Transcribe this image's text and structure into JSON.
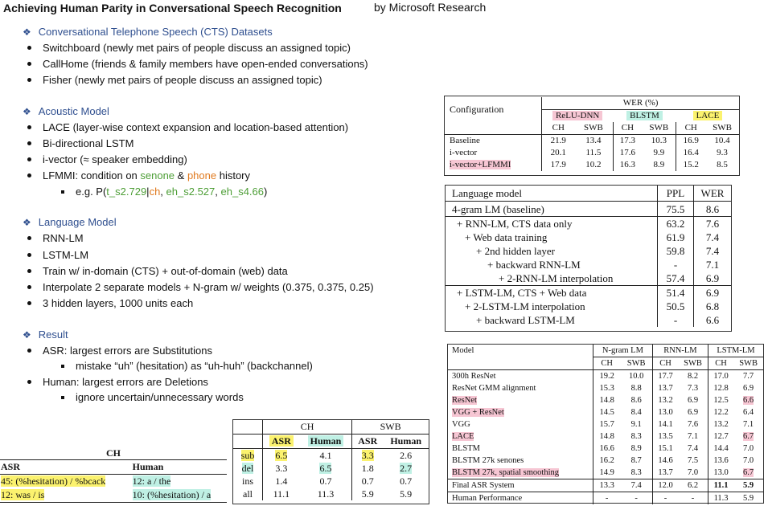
{
  "header": {
    "title": "Achieving Human Parity in Conversational Speech Recognition",
    "byline": "by Microsoft Research"
  },
  "sections": {
    "cts": {
      "heading": "Conversational Telephone Speech (CTS) Datasets",
      "items": [
        "Switchboard (newly met pairs of people discuss an assigned topic)",
        "CallHome (friends & family members have open-ended conversations)",
        "Fisher (newly met pairs of people discuss an assigned topic)"
      ]
    },
    "acoustic": {
      "heading": "Acoustic Model",
      "items": [
        "LACE (layer-wise context expansion and location-based attention)",
        "Bi-directional LSTM",
        "i-vector (≈ speaker embedding)"
      ],
      "lfmmi": {
        "pre": "LFMMI: condition on ",
        "senone": "senone",
        "amp": " & ",
        "phone": "phone",
        "post": " history"
      },
      "example": {
        "pre": "e.g. P(",
        "t": "t_s2.729",
        "bar": "|",
        "ch": "ch",
        "comma1": ", ",
        "eh1": "eh_s2.527",
        "comma2": ", ",
        "eh2": "eh_s4.66",
        "post": ")"
      }
    },
    "language": {
      "heading": "Language Model",
      "items": [
        "RNN-LM",
        "LSTM-LM",
        "Train w/ in-domain (CTS) + out-of-domain (web) data",
        "Interpolate 2 separate models + N-gram w/ weights (0.375, 0.375, 0.25)",
        "3 hidden layers, 1000 units each"
      ]
    },
    "result": {
      "heading": "Result",
      "asr": "ASR: largest errors are Substitutions",
      "asr_sub": "mistake “uh” (hesitation) as “uh-huh” (backchannel)",
      "human": "Human: largest errors are Deletions",
      "human_sub": "ignore uncertain/unnecessary words"
    }
  },
  "wer_table": {
    "config_header": "Configuration",
    "wer_header": "WER (%)",
    "groups": [
      "ReLU-DNN",
      "BLSTM",
      "LACE"
    ],
    "sub": [
      "CH",
      "SWB",
      "CH",
      "SWB",
      "CH",
      "SWB"
    ],
    "rows": [
      {
        "name": "Baseline",
        "v": [
          "21.9",
          "13.4",
          "17.3",
          "10.3",
          "16.9",
          "10.4"
        ]
      },
      {
        "name": "i-vector",
        "v": [
          "20.1",
          "11.5",
          "17.6",
          "9.9",
          "16.4",
          "9.3"
        ]
      },
      {
        "name": "i-vector+LFMMI",
        "v": [
          "17.9",
          "10.2",
          "16.3",
          "8.9",
          "15.2",
          "8.5"
        ]
      }
    ]
  },
  "lm_table": {
    "headers": [
      "Language model",
      "PPL",
      "WER"
    ],
    "rows": [
      {
        "name": "4-gram LM (baseline)",
        "ppl": "75.5",
        "wer": "8.6"
      },
      {
        "name": "+ RNN-LM, CTS data only",
        "ppl": "63.2",
        "wer": "7.6"
      },
      {
        "name": "+ Web data training",
        "ppl": "61.9",
        "wer": "7.4"
      },
      {
        "name": "+ 2nd hidden layer",
        "ppl": "59.8",
        "wer": "7.4"
      },
      {
        "name": "+ backward RNN-LM",
        "ppl": "-",
        "wer": "7.1"
      },
      {
        "name": "+ 2-RNN-LM interpolation",
        "ppl": "57.4",
        "wer": "6.9"
      },
      {
        "name": "+ LSTM-LM, CTS + Web data",
        "ppl": "51.4",
        "wer": "6.9"
      },
      {
        "name": "+ 2-LSTM-LM interpolation",
        "ppl": "50.5",
        "wer": "6.8"
      },
      {
        "name": "+ backward LSTM-LM",
        "ppl": "-",
        "wer": "6.6"
      }
    ]
  },
  "model_table": {
    "headers": [
      "Model",
      "N-gram LM",
      "RNN-LM",
      "LSTM-LM"
    ],
    "sub": [
      "CH",
      "SWB",
      "CH",
      "SWB",
      "CH",
      "SWB"
    ],
    "rows": [
      {
        "name": "300h ResNet",
        "v": [
          "19.2",
          "10.0",
          "17.7",
          "8.2",
          "17.0",
          "7.7"
        ]
      },
      {
        "name": "ResNet GMM alignment",
        "v": [
          "15.3",
          "8.8",
          "13.7",
          "7.3",
          "12.8",
          "6.9"
        ]
      },
      {
        "name": "ResNet",
        "v": [
          "14.8",
          "8.6",
          "13.2",
          "6.9",
          "12.5",
          "6.6"
        ]
      },
      {
        "name": "VGG + ResNet",
        "v": [
          "14.5",
          "8.4",
          "13.0",
          "6.9",
          "12.2",
          "6.4"
        ]
      },
      {
        "name": "VGG",
        "v": [
          "15.7",
          "9.1",
          "14.1",
          "7.6",
          "13.2",
          "7.1"
        ]
      },
      {
        "name": "LACE",
        "v": [
          "14.8",
          "8.3",
          "13.5",
          "7.1",
          "12.7",
          "6.7"
        ]
      },
      {
        "name": "BLSTM",
        "v": [
          "16.6",
          "8.9",
          "15.1",
          "7.4",
          "14.4",
          "7.0"
        ]
      },
      {
        "name": "BLSTM 27k senones",
        "v": [
          "16.2",
          "8.7",
          "14.6",
          "7.5",
          "13.6",
          "7.0"
        ]
      },
      {
        "name": "BLSTM 27k, spatial smoothing",
        "v": [
          "14.9",
          "8.3",
          "13.7",
          "7.0",
          "13.0",
          "6.7"
        ]
      },
      {
        "name": "Final ASR System",
        "v": [
          "13.3",
          "7.4",
          "12.0",
          "6.2",
          "11.1",
          "5.9"
        ]
      },
      {
        "name": "Human Performance",
        "v": [
          "-",
          "-",
          "-",
          "-",
          "11.3",
          "5.9"
        ]
      }
    ]
  },
  "err_table": {
    "groups": [
      "CH",
      "SWB"
    ],
    "sub": [
      "ASR",
      "Human",
      "ASR",
      "Human"
    ],
    "rows": [
      {
        "name": "sub",
        "v": [
          "6.5",
          "4.1",
          "3.3",
          "2.6"
        ]
      },
      {
        "name": "del",
        "v": [
          "3.3",
          "6.5",
          "1.8",
          "2.7"
        ]
      },
      {
        "name": "ins",
        "v": [
          "1.4",
          "0.7",
          "0.7",
          "0.7"
        ]
      },
      {
        "name": "all",
        "v": [
          "11.1",
          "11.3",
          "5.9",
          "5.9"
        ]
      }
    ]
  },
  "conf_table": {
    "group": "CH",
    "headers": [
      "ASR",
      "Human"
    ],
    "rows": [
      {
        "asr": "45: (%hesitation) / %bcack",
        "human": "12: a / the"
      },
      {
        "asr": "12: was / is",
        "human": "10: (%hesitation) / a"
      }
    ]
  }
}
